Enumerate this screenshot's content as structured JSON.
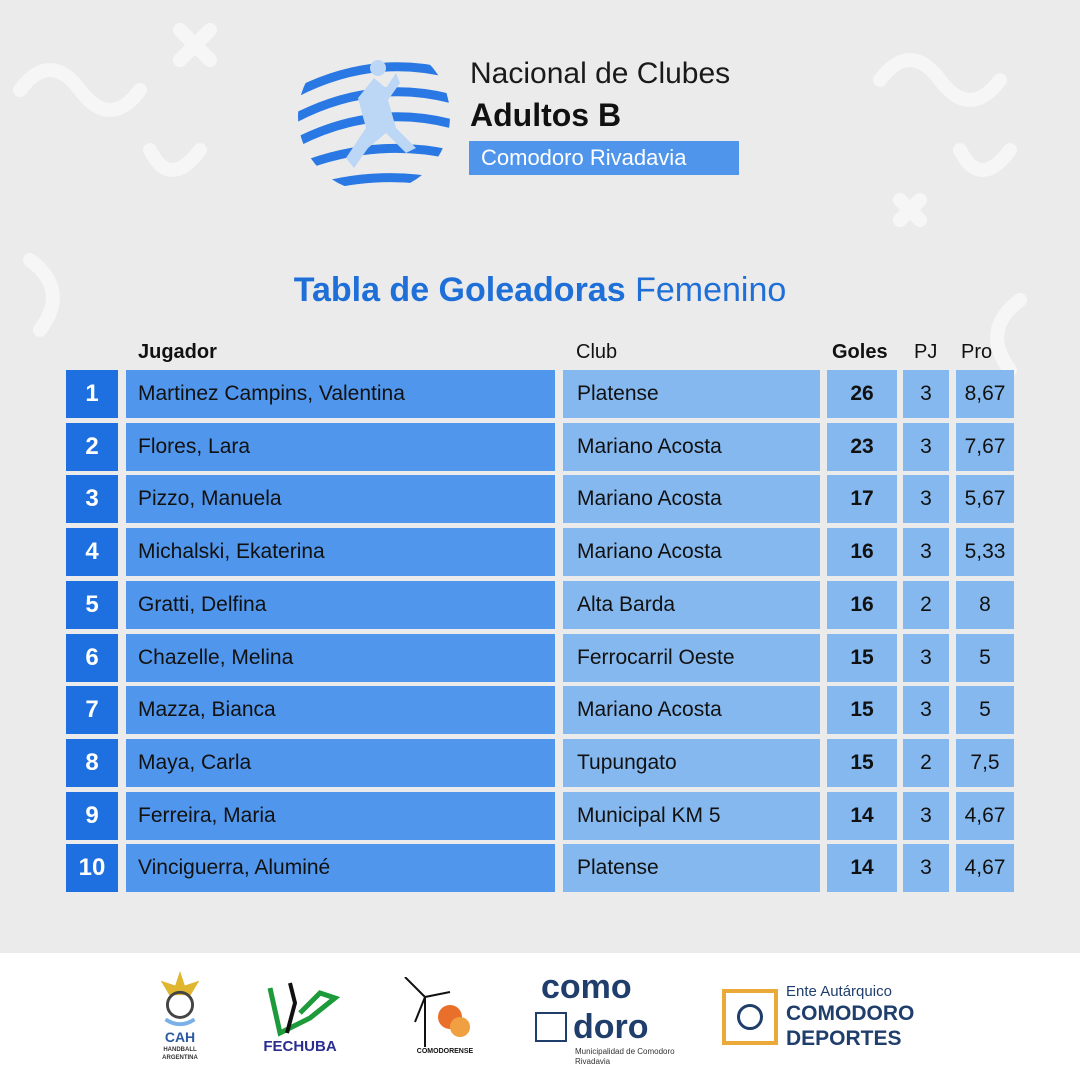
{
  "header": {
    "line1": "Nacional de Clubes",
    "line2": "Adultos B",
    "location": "Comodoro Rivadavia"
  },
  "title": {
    "bold": "Tabla de Goleadoras",
    "light": "Femenino"
  },
  "columns": {
    "player": "Jugador",
    "club": "Club",
    "goals": "Goles",
    "pj": "PJ",
    "pro": "Pro"
  },
  "rows": [
    {
      "rank": "1",
      "name": "Martinez Campins, Valentina",
      "club": "Platense",
      "goals": "26",
      "pj": "3",
      "pro": "8,67"
    },
    {
      "rank": "2",
      "name": "Flores, Lara",
      "club": "Mariano Acosta",
      "goals": "23",
      "pj": "3",
      "pro": "7,67"
    },
    {
      "rank": "3",
      "name": "Pizzo, Manuela",
      "club": "Mariano Acosta",
      "goals": "17",
      "pj": "3",
      "pro": "5,67"
    },
    {
      "rank": "4",
      "name": "Michalski, Ekaterina",
      "club": "Mariano Acosta",
      "goals": "16",
      "pj": "3",
      "pro": "5,33"
    },
    {
      "rank": "5",
      "name": "Gratti, Delfina",
      "club": "Alta Barda",
      "goals": "16",
      "pj": "2",
      "pro": "8"
    },
    {
      "rank": "6",
      "name": "Chazelle, Melina",
      "club": "Ferrocarril Oeste",
      "goals": "15",
      "pj": "3",
      "pro": "5"
    },
    {
      "rank": "7",
      "name": "Mazza, Bianca",
      "club": "Mariano Acosta",
      "goals": "15",
      "pj": "3",
      "pro": "5"
    },
    {
      "rank": "8",
      "name": "Maya, Carla",
      "club": "Tupungato",
      "goals": "15",
      "pj": "2",
      "pro": "7,5"
    },
    {
      "rank": "9",
      "name": "Ferreira, Maria",
      "club": "Municipal KM 5",
      "goals": "14",
      "pj": "3",
      "pro": "4,67"
    },
    {
      "rank": "10",
      "name": "Vinciguerra, Aluminé",
      "club": "Platense",
      "goals": "14",
      "pj": "3",
      "pro": "4,67"
    }
  ],
  "footer": {
    "cah": {
      "name": "CAH",
      "sub": "HANDBALL ARGENTINA"
    },
    "fechuba": "FECHUBA",
    "asoc": "COMODORENSE",
    "comodoro": {
      "top": "como",
      "bottom": "doro",
      "sub": "Municipalidad de Comodoro Rivadavia"
    },
    "ente": {
      "line1": "Ente Autárquico",
      "line2": "COMODORO",
      "line3": "DEPORTES"
    }
  },
  "colors": {
    "rank": "#1e6fe0",
    "name": "#5096ec",
    "cells": "#85b8ef",
    "title": "#1f6fd9",
    "background": "#ebebeb"
  }
}
